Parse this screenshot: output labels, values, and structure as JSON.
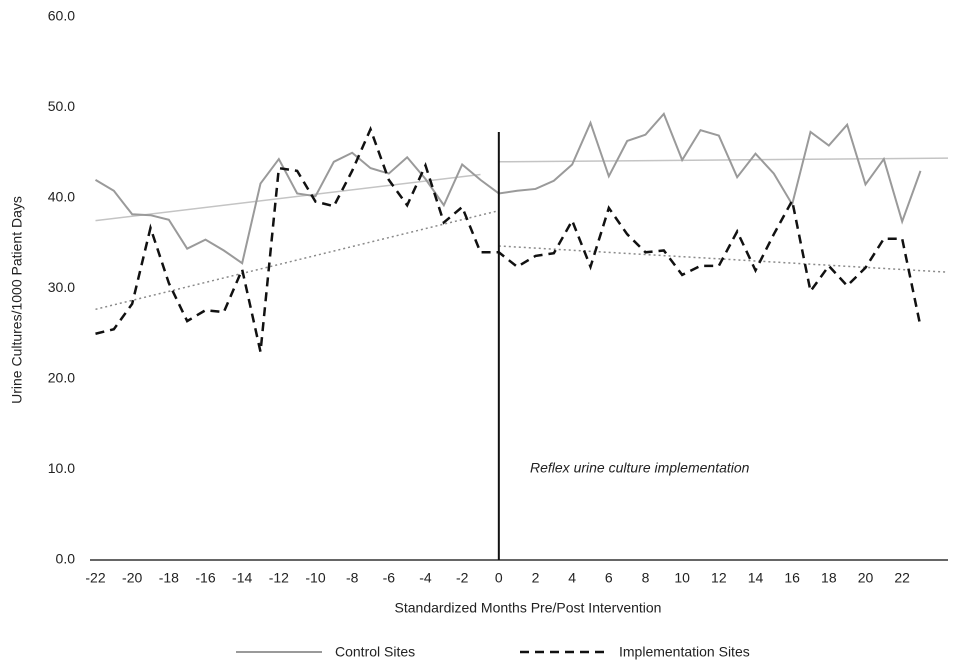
{
  "chart_data": {
    "type": "line",
    "y_label": "Urine Cultures/1000 Patient Days",
    "x_label": "Standardized Months Pre/Post Intervention",
    "annotation": "Reflex urine culture implementation",
    "intervention_x": 0,
    "xlim": [
      -22.3,
      24.5
    ],
    "xticks": [
      -22,
      -20,
      -18,
      -16,
      -14,
      -12,
      -10,
      -8,
      -6,
      -4,
      -2,
      0,
      2,
      4,
      6,
      8,
      10,
      12,
      14,
      16,
      18,
      20,
      22
    ],
    "ylim": [
      0,
      60
    ],
    "yticks": [
      {
        "value": 0,
        "label": "0.0"
      },
      {
        "value": 10,
        "label": "10.0"
      },
      {
        "value": 20,
        "label": "20.0"
      },
      {
        "value": 30,
        "label": "30.0"
      },
      {
        "value": 40,
        "label": "40.0"
      },
      {
        "value": 50,
        "label": "50.0"
      },
      {
        "value": 60,
        "label": "60.0"
      }
    ],
    "x": [
      -22,
      -21,
      -20,
      -19,
      -18,
      -17,
      -16,
      -15,
      -14,
      -13,
      -12,
      -11,
      -10,
      -9,
      -8,
      -7,
      -6,
      -5,
      -4,
      -3,
      -2,
      -1,
      0,
      1,
      2,
      3,
      4,
      5,
      6,
      7,
      8,
      9,
      10,
      11,
      12,
      13,
      14,
      15,
      16,
      17,
      18,
      19,
      20,
      21,
      22,
      23
    ],
    "series": [
      {
        "name": "Control Sites",
        "color": "#9a9a9a",
        "dash": "solid",
        "values": [
          42.0,
          40.8,
          38.2,
          38.1,
          37.6,
          34.4,
          35.4,
          34.2,
          32.8,
          41.6,
          44.3,
          40.5,
          40.2,
          44.0,
          45.0,
          43.3,
          42.7,
          44.5,
          42.1,
          39.2,
          43.7,
          42.0,
          40.5,
          40.8,
          41.0,
          41.9,
          43.7,
          48.3,
          42.4,
          46.3,
          47.0,
          49.3,
          44.2,
          47.5,
          46.9,
          42.3,
          44.9,
          42.7,
          39.3,
          47.3,
          45.8,
          48.1,
          41.5,
          44.3,
          37.4,
          43.0
        ]
      },
      {
        "name": "Implementation Sites",
        "color": "#111111",
        "dash": "dashed",
        "values": [
          25.0,
          25.5,
          28.3,
          36.7,
          30.6,
          26.4,
          27.6,
          27.4,
          32.1,
          23.0,
          43.3,
          43.0,
          39.6,
          39.1,
          43.0,
          47.6,
          42.0,
          39.2,
          43.6,
          37.3,
          39.0,
          34.0,
          34.0,
          32.4,
          33.6,
          33.9,
          37.5,
          32.4,
          38.9,
          36.0,
          34.0,
          34.2,
          31.5,
          32.5,
          32.5,
          36.3,
          32.0,
          36.0,
          39.7,
          29.7,
          32.5,
          30.3,
          32.3,
          35.5,
          35.5,
          25.8
        ]
      }
    ],
    "trend_lines": [
      {
        "x": [
          -22,
          -1
        ],
        "values": [
          37.5,
          42.6
        ],
        "color": "#c4c4c4",
        "dash": "solid"
      },
      {
        "x": [
          0,
          24.5
        ],
        "values": [
          44.0,
          44.4
        ],
        "color": "#c4c4c4",
        "dash": "solid"
      },
      {
        "x": [
          -22,
          0
        ],
        "values": [
          27.7,
          38.6
        ],
        "color": "#8a8a8a",
        "dash": "dotted"
      },
      {
        "x": [
          0,
          24.5
        ],
        "values": [
          34.7,
          31.8
        ],
        "color": "#8a8a8a",
        "dash": "dotted"
      }
    ]
  }
}
